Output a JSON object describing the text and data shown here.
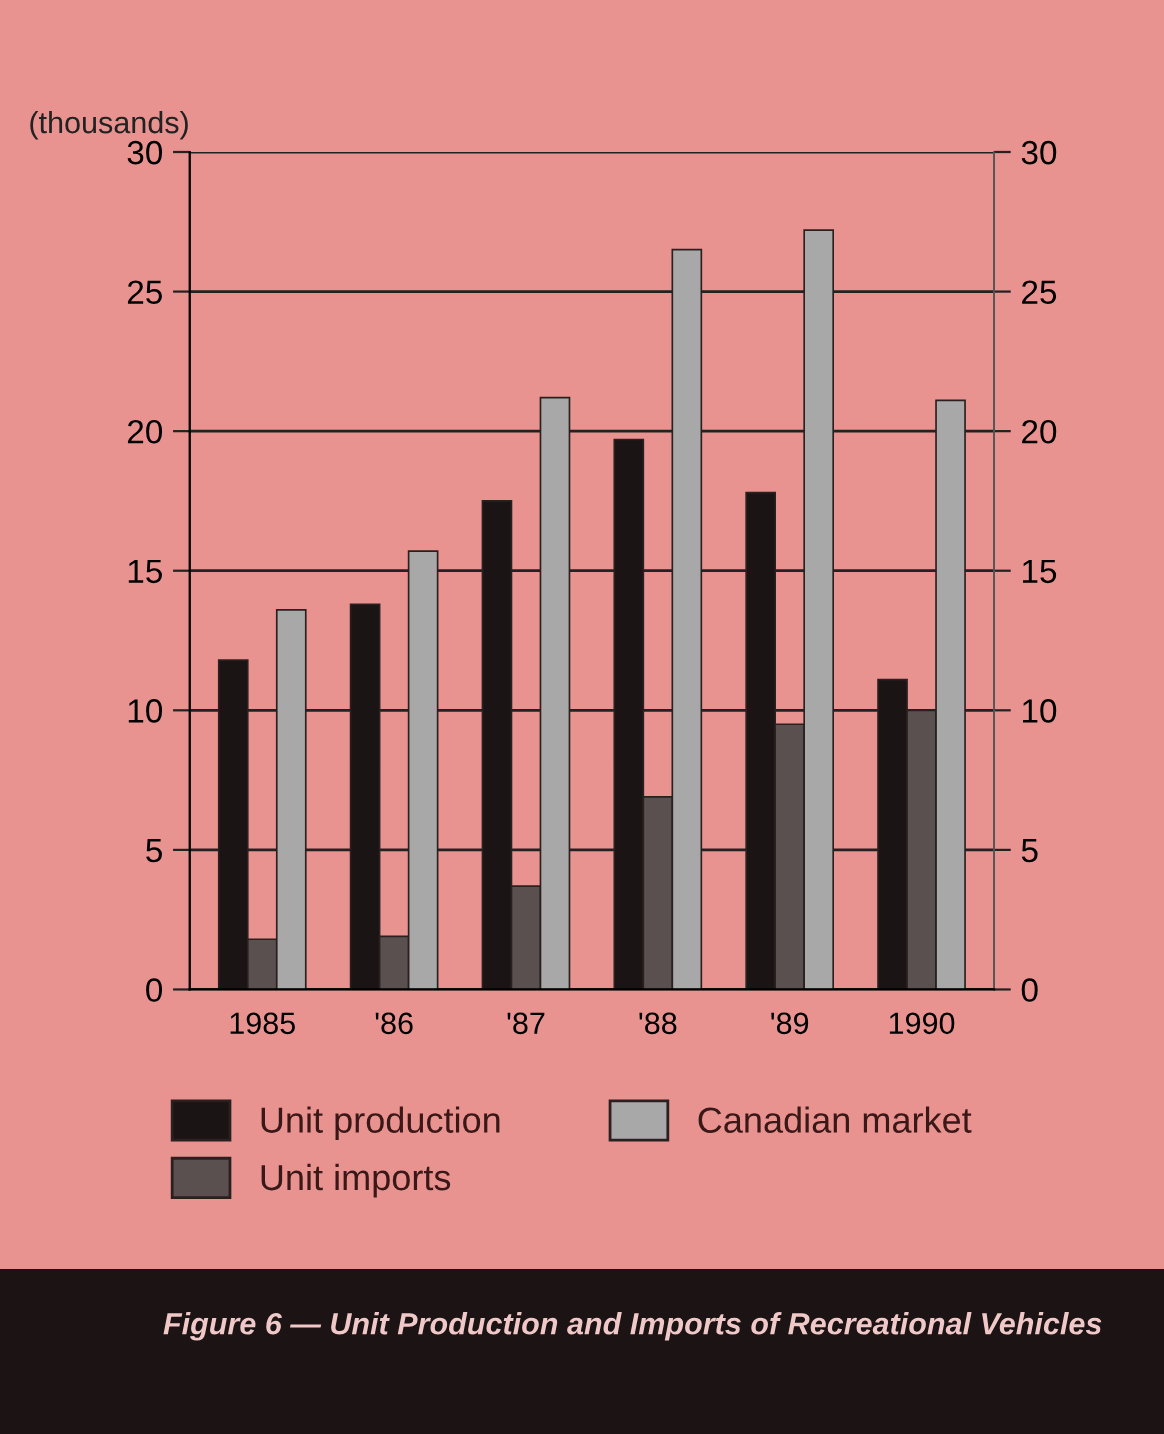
{
  "chart_data": {
    "type": "bar",
    "title": "Figure 6 — Unit Production and Imports of Recreational Vehicles",
    "ylabel": "(thousands)",
    "categories": [
      "1985",
      "'86",
      "'87",
      "'88",
      "'89",
      "1990"
    ],
    "series": [
      {
        "name": "Unit production",
        "color": "#1a1414",
        "values": [
          11.8,
          13.8,
          17.5,
          19.7,
          17.8,
          11.1
        ]
      },
      {
        "name": "Unit imports",
        "color": "#5a5050",
        "values": [
          1.8,
          1.9,
          3.7,
          6.9,
          9.5,
          10.0
        ]
      },
      {
        "name": "Canadian market",
        "color": "#a8a8a8",
        "values": [
          13.6,
          15.7,
          21.2,
          26.5,
          27.2,
          21.1
        ]
      }
    ],
    "ylim": [
      0,
      30
    ],
    "yticks": [
      0,
      5,
      10,
      15,
      20,
      25,
      30
    ],
    "y2lim": [
      0,
      30
    ],
    "y2ticks": [
      0,
      5,
      10,
      15,
      20,
      25,
      30
    ],
    "grid": "y",
    "legend": "bottom"
  }
}
